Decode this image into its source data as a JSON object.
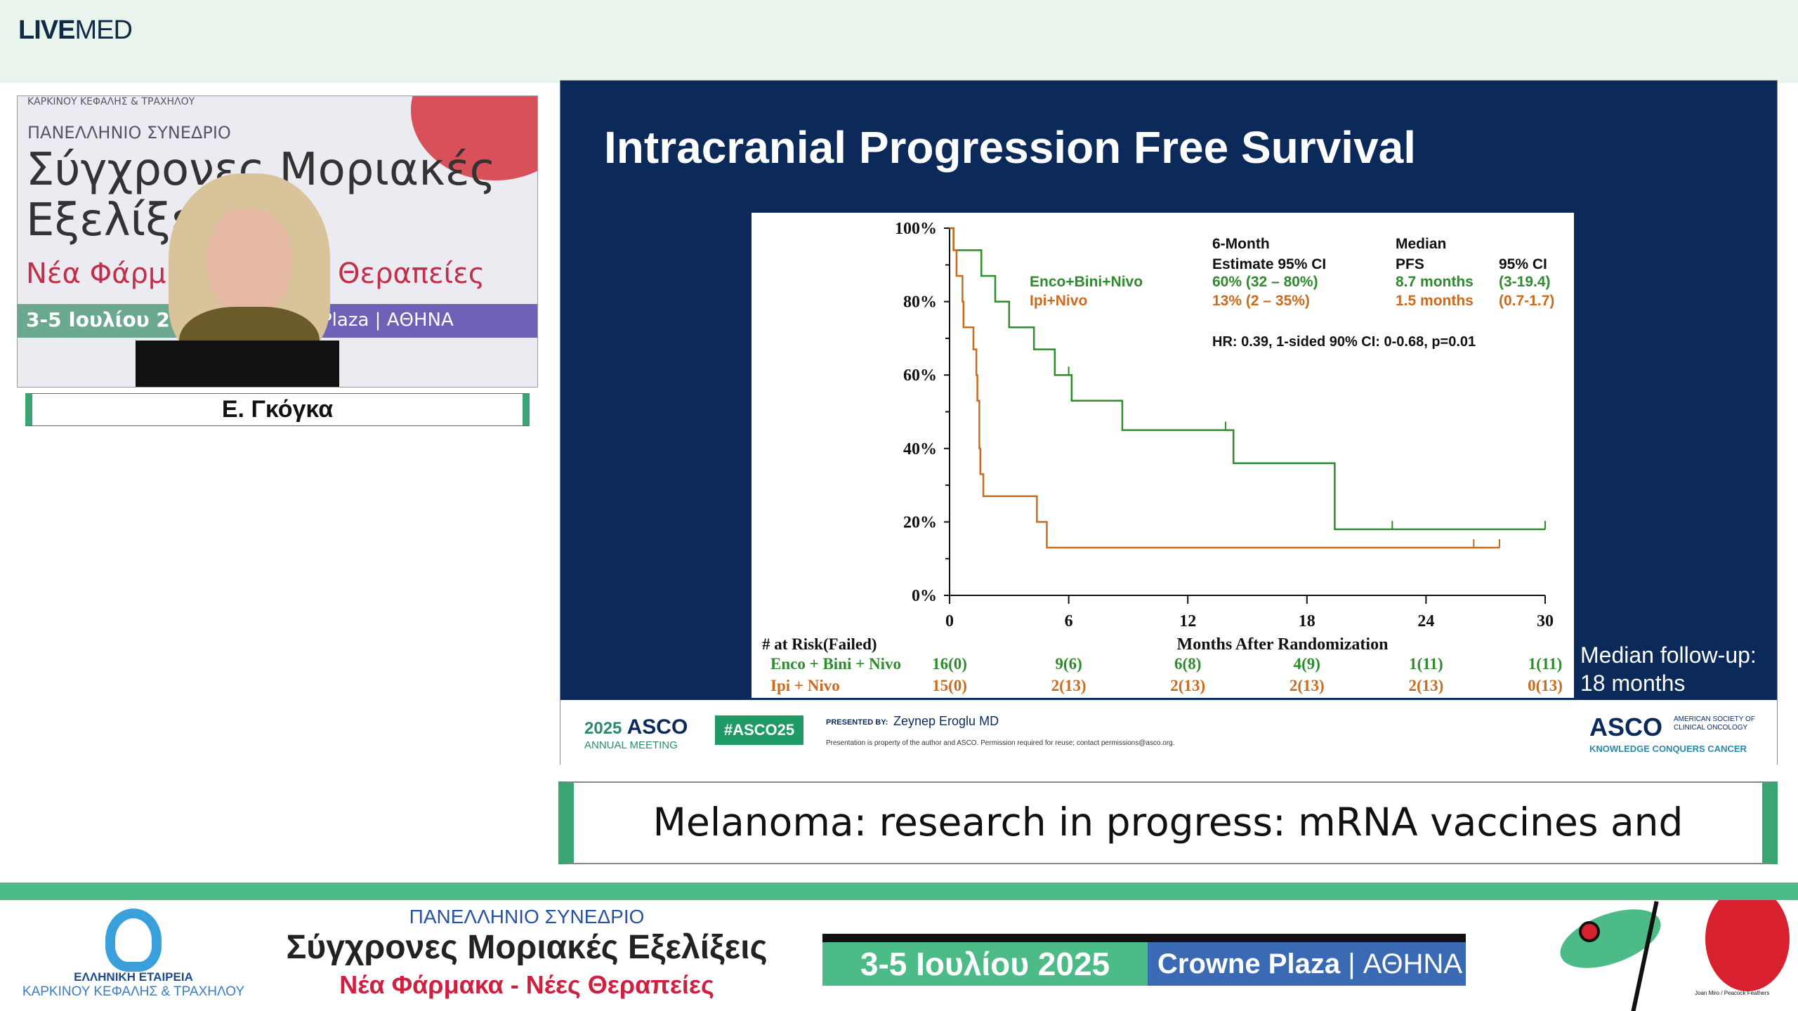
{
  "header": {
    "logo_bold": "LIVE",
    "logo_light": "MED"
  },
  "camera": {
    "backdrop_org": "ΚΑΡΚΙΝΟΥ ΚΕΦΑΛΗΣ & ΤΡΑΧΗΛΟΥ",
    "backdrop_subtitle": "ΠΑΝΕΛΛΗΝΙΟ ΣΥΝΕΔΡΙΟ",
    "backdrop_line1": "Σύγχρονες Μοριακές",
    "backdrop_line2": "Εξελίξε",
    "backdrop_line3a": "Νέα Φάρμ",
    "backdrop_line3b": "Θεραπείες",
    "backdrop_date": "3-5 Ιουλίου 2025",
    "backdrop_venue": "Plaza | ΑΘΗΝΑ",
    "speaker_name": "Ε. Γκόγκα"
  },
  "slide": {
    "title": "Intracranial Progression Free Survival",
    "followup_line1": "Median follow-up:",
    "followup_line2": "18 months",
    "footer": {
      "meeting_year": "2025",
      "meeting_brand": "ASCO",
      "meeting_sub": "ANNUAL MEETING",
      "hashtag": "#ASCO25",
      "presented_by_label": "PRESENTED BY:",
      "presenter": "Zeynep Eroglu MD",
      "disclaimer": "Presentation is property of the author and ASCO. Permission required for reuse; contact permissions@asco.org.",
      "asco_logo": "ASCO",
      "asco_society": "AMERICAN SOCIETY OF CLINICAL ONCOLOGY",
      "asco_tagline": "KNOWLEDGE CONQUERS CANCER"
    }
  },
  "chart_data": {
    "type": "line",
    "subtype": "kaplan-meier step",
    "xlabel": "Months After Randomization",
    "ylabel": "",
    "xlim": [
      0,
      30
    ],
    "ylim": [
      0,
      100
    ],
    "xticks": [
      "0",
      "6",
      "12",
      "18",
      "24",
      "30"
    ],
    "yticks": [
      "0%",
      "20%",
      "40%",
      "60%",
      "80%",
      "100%"
    ],
    "grid": false,
    "colors": {
      "green": "#2e8b2e",
      "orange": "#cc6a1e"
    },
    "series": [
      {
        "name": "Enco+Bini+Nivo",
        "color": "#2e8b2e",
        "steps": [
          [
            0,
            100
          ],
          [
            0.2,
            94
          ],
          [
            1.6,
            87
          ],
          [
            2.3,
            80
          ],
          [
            3.0,
            73
          ],
          [
            4.25,
            67
          ],
          [
            5.3,
            60
          ],
          [
            6.15,
            53
          ],
          [
            8.7,
            45
          ],
          [
            14.3,
            36
          ],
          [
            19.4,
            18
          ]
        ],
        "end": 30,
        "censored": [
          6.0,
          13.9,
          22.3,
          30
        ],
        "six_month": "60% (32 – 80%)",
        "median": "8.7 months",
        "median_ci": "(3-19.4)",
        "at_risk": [
          "16(0)",
          "9(6)",
          "6(8)",
          "4(9)",
          "1(11)",
          "1(11)"
        ]
      },
      {
        "name": "Ipi+Nivo",
        "color": "#cc6a1e",
        "steps": [
          [
            0,
            100
          ],
          [
            0.2,
            94
          ],
          [
            0.35,
            87
          ],
          [
            0.65,
            80
          ],
          [
            0.7,
            73
          ],
          [
            1.2,
            67
          ],
          [
            1.35,
            60
          ],
          [
            1.4,
            53
          ],
          [
            1.5,
            40
          ],
          [
            1.55,
            33
          ],
          [
            1.7,
            27
          ],
          [
            4.4,
            20
          ],
          [
            4.9,
            13
          ]
        ],
        "end": 27.7,
        "censored": [
          26.4,
          27.7
        ],
        "six_month": "13% (2 – 35%)",
        "median": "1.5 months",
        "median_ci": "(0.7-1.7)",
        "at_risk": [
          "15(0)",
          "2(13)",
          "2(13)",
          "2(13)",
          "2(13)",
          "0(13)"
        ]
      }
    ],
    "legend_headers": {
      "six_month_1": "6-Month",
      "six_month_2": "Estimate 95% CI",
      "median_1": "Median",
      "median_2": "PFS",
      "ci": "95% CI"
    },
    "hr_text": "HR: 0.39, 1-sided 90% CI: 0-0.68, p=0.01",
    "risk_table_title": "# at Risk(Failed)",
    "risk_labels": [
      "Enco + Bini + Nivo",
      "Ipi + Nivo"
    ]
  },
  "caption": "Melanoma: research in progress: mRNA vaccines and beyond.",
  "banner": {
    "society_1": "ΕΛΛΗΝΙΚΗ ΕΤΑΙΡΕΙΑ",
    "society_2": "ΚΑΡΚΙΝΟΥ ΚΕΦΑΛΗΣ & ΤΡΑΧΗΛΟΥ",
    "subtitle": "ΠΑΝΕΛΛΗΝΙΟ ΣΥΝΕΔΡΙΟ",
    "title": "Σύγχρονες Μοριακές Εξελίξεις",
    "tagline": "Νέα Φάρμακα - Νέες Θεραπείες",
    "date": "3-5 Ιουλίου 2025",
    "venue": "Crowne Plaza",
    "city": "ΑΘΗΝΑ",
    "art_credit": "Joan Miro / Peacock Feathers"
  }
}
